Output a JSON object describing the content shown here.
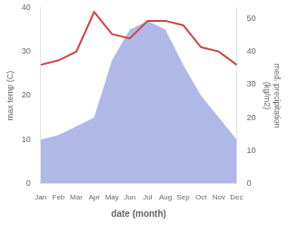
{
  "chart_data": {
    "type": "line",
    "categories": [
      "Jan",
      "Feb",
      "Mar",
      "Apr",
      "May",
      "Jun",
      "Jul",
      "Aug",
      "Sep",
      "Oct",
      "Nov",
      "Dec"
    ],
    "series": [
      {
        "type": "area",
        "color": "#b0b8e8",
        "values": [
          10,
          11,
          13,
          15,
          28,
          35,
          37,
          35,
          27,
          20,
          15,
          10
        ]
      },
      {
        "type": "line",
        "color": "#cc4444",
        "values": [
          27,
          28,
          30,
          39,
          34,
          33,
          37,
          37,
          36,
          31,
          30,
          27
        ]
      }
    ],
    "xlabel": "date (month)",
    "ylabel": "max temp (C)",
    "y2label": "med. precipitation\n(kg/m2)",
    "ylim": [
      0,
      40
    ],
    "yticks": [
      0,
      10,
      20,
      30,
      40
    ],
    "y2lim": [
      0,
      53.33
    ],
    "y2ticks": [
      0,
      10,
      20,
      30,
      40,
      50
    ],
    "grid": false
  }
}
